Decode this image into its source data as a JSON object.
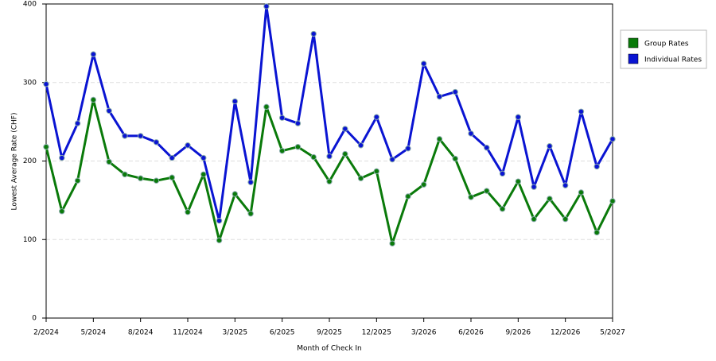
{
  "chart_data": {
    "type": "line",
    "x_label": "Month of Check In",
    "y_label": "Lowest Average Rate (CHF)",
    "categories": [
      "2/2024",
      null,
      null,
      "5/2024",
      null,
      null,
      "8/2024",
      null,
      null,
      "11/2024",
      null,
      null,
      "3/2025",
      null,
      null,
      "6/2025",
      null,
      null,
      "9/2025",
      null,
      null,
      "12/2025",
      null,
      null,
      "3/2026",
      null,
      null,
      "6/2026",
      null,
      null,
      "9/2026",
      null,
      null,
      "12/2026",
      null,
      null,
      "5/2027"
    ],
    "series": [
      {
        "name": "Group Rates",
        "color": "#0a7a0a",
        "values": [
          218,
          136,
          175,
          278,
          199,
          183,
          178,
          175,
          179,
          135,
          183,
          99,
          158,
          133,
          269,
          213,
          218,
          205,
          174,
          209,
          178,
          187,
          95,
          155,
          170,
          228,
          203,
          154,
          162,
          139,
          174,
          126,
          152,
          126,
          160,
          109,
          149
        ]
      },
      {
        "name": "Individual Rates",
        "color": "#0a14d2",
        "values": [
          298,
          204,
          248,
          336,
          264,
          232,
          232,
          224,
          204,
          220,
          204,
          124,
          276,
          173,
          397,
          255,
          248,
          362,
          206,
          241,
          220,
          256,
          202,
          216,
          324,
          282,
          288,
          235,
          217,
          184,
          256,
          167,
          219,
          169,
          263,
          193,
          228
        ]
      }
    ],
    "ylim": [
      0,
      400
    ],
    "yticks": [
      0,
      100,
      200,
      300,
      400
    ],
    "grid": true,
    "legend": "right"
  }
}
